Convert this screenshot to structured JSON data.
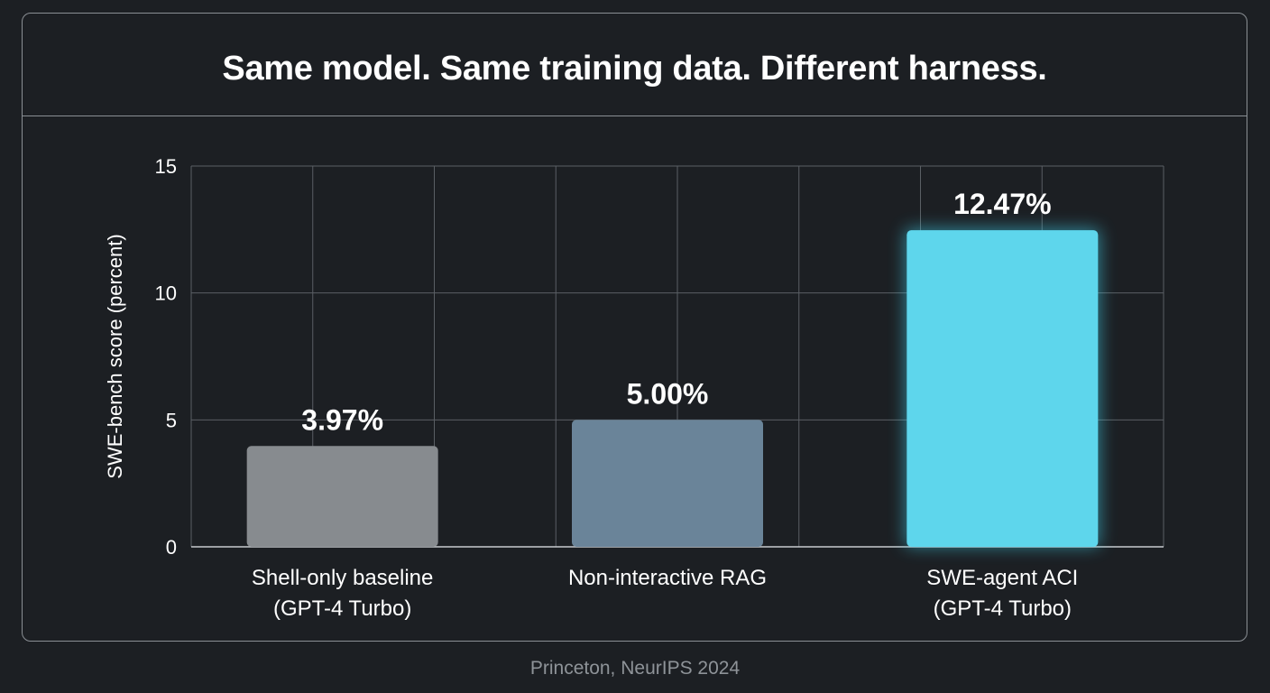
{
  "chart_data": {
    "type": "bar",
    "title": "Same model. Same training data. Different harness.",
    "ylabel": "SWE-bench score (percent)",
    "xlabel": "",
    "ylim": [
      0,
      15
    ],
    "yticks": [
      0,
      5,
      10,
      15
    ],
    "grid": true,
    "categories": [
      [
        "Shell-only baseline",
        "(GPT-4 Turbo)"
      ],
      [
        "Non-interactive RAG"
      ],
      [
        "SWE-agent ACI",
        "(GPT-4 Turbo)"
      ]
    ],
    "values": [
      3.97,
      5.0,
      12.47
    ],
    "value_labels": [
      "3.97%",
      "5.00%",
      "12.47%"
    ],
    "colors": [
      "#878b8f",
      "#6a8499",
      "#5ed6ec"
    ],
    "highlight_index": 2
  },
  "footer": {
    "source": "Princeton, NeurIPS 2024"
  },
  "theme": {
    "background": "#1c1f23",
    "grid": "#5a5f64",
    "text": "#ffffff",
    "muted": "#8e9398",
    "glow": "#3fd3ee"
  }
}
